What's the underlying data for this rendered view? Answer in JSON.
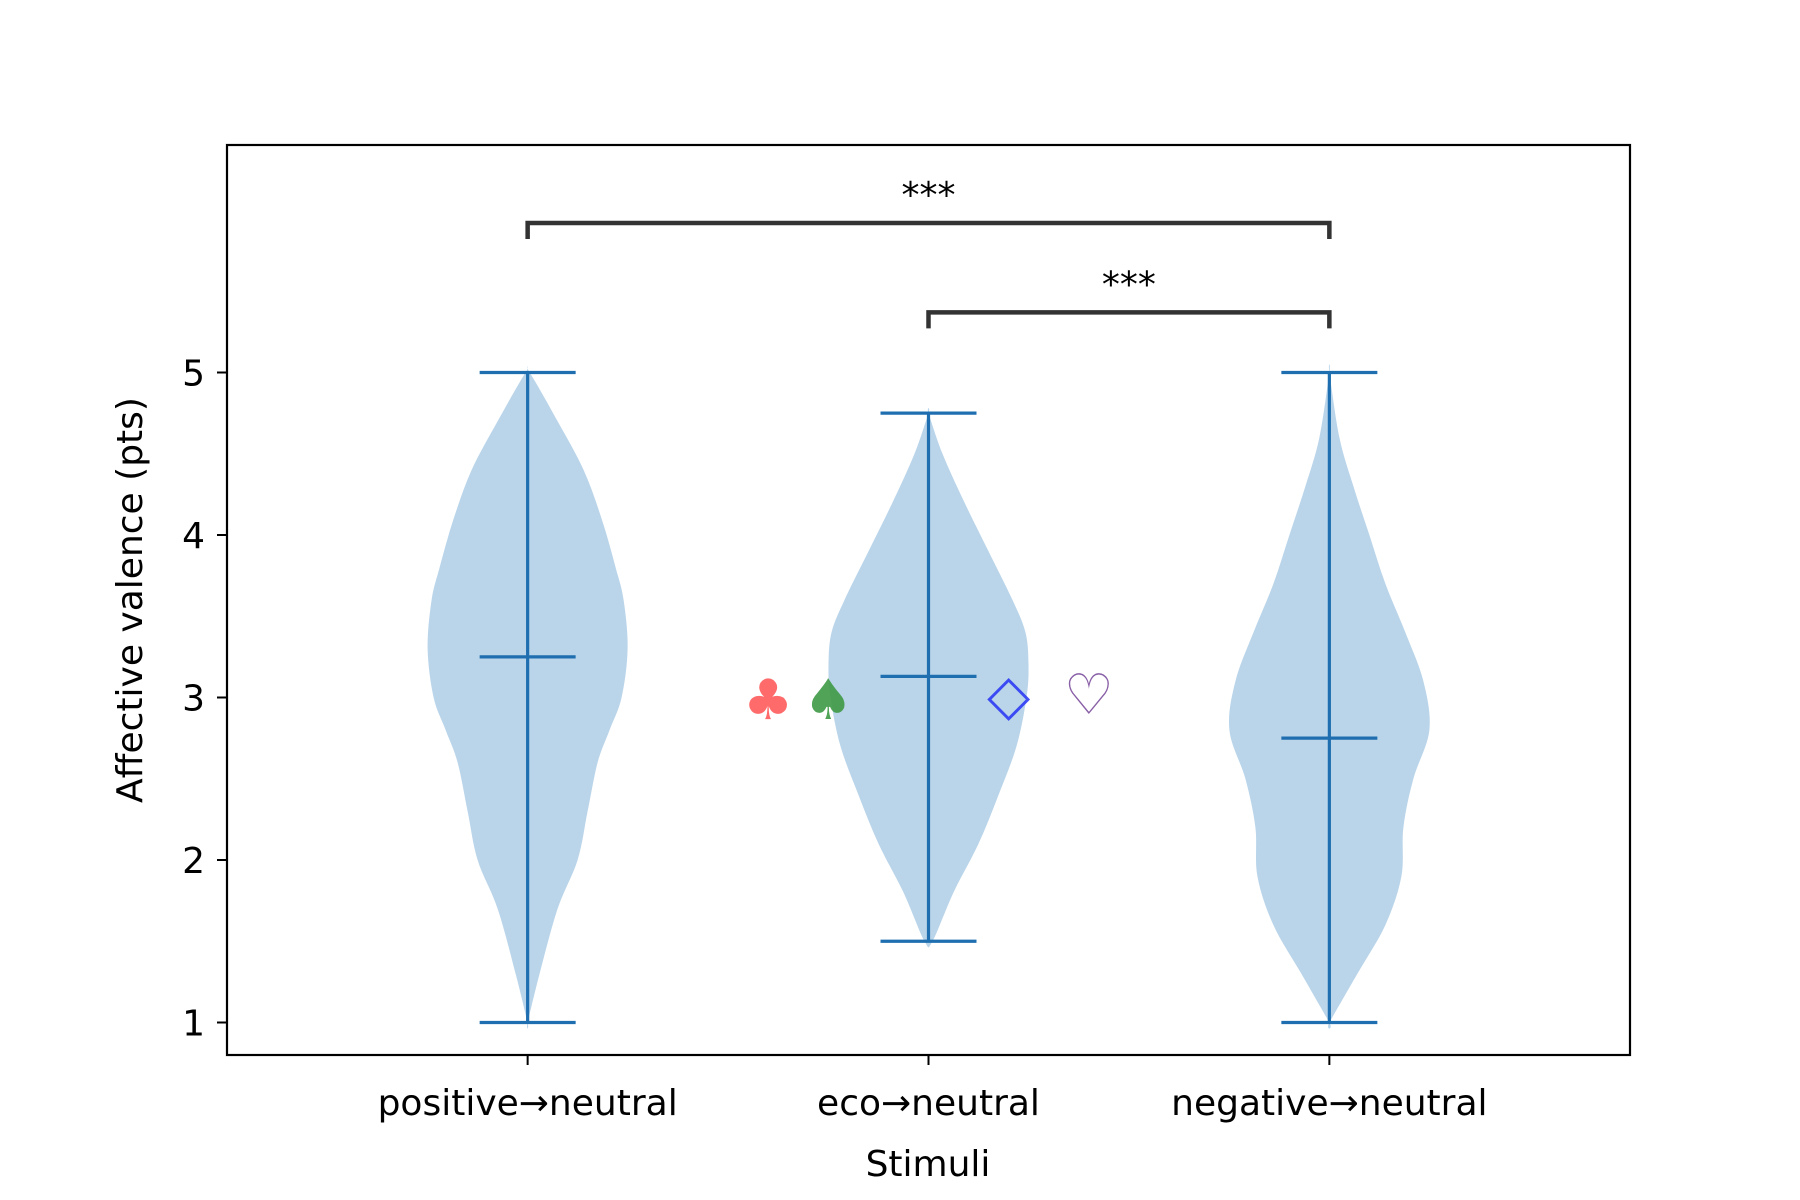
{
  "chart_data": {
    "type": "violin",
    "title": "",
    "xlabel": "Stimuli",
    "ylabel": "Affective valence (pts)",
    "categories": [
      "positive→neutral",
      "eco→neutral",
      "negative→neutral"
    ],
    "ylim": [
      0.8,
      6.4
    ],
    "yticks": [
      1,
      2,
      3,
      4,
      5
    ],
    "violins": [
      {
        "category": "positive→neutral",
        "min": 1.0,
        "max": 5.0,
        "mean": 3.25,
        "density": [
          [
            1.0,
            0.0
          ],
          [
            1.3,
            0.12
          ],
          [
            1.7,
            0.3
          ],
          [
            2.0,
            0.5
          ],
          [
            2.3,
            0.6
          ],
          [
            2.6,
            0.7
          ],
          [
            2.8,
            0.82
          ],
          [
            3.0,
            0.94
          ],
          [
            3.3,
            1.0
          ],
          [
            3.6,
            0.96
          ],
          [
            3.8,
            0.88
          ],
          [
            4.1,
            0.74
          ],
          [
            4.4,
            0.56
          ],
          [
            4.7,
            0.3
          ],
          [
            5.0,
            0.02
          ]
        ]
      },
      {
        "category": "eco→neutral",
        "min": 1.5,
        "max": 4.75,
        "mean": 3.13,
        "density": [
          [
            1.5,
            0.04
          ],
          [
            1.8,
            0.25
          ],
          [
            2.1,
            0.5
          ],
          [
            2.4,
            0.7
          ],
          [
            2.7,
            0.88
          ],
          [
            3.0,
            0.98
          ],
          [
            3.2,
            1.0
          ],
          [
            3.4,
            0.97
          ],
          [
            3.6,
            0.84
          ],
          [
            3.9,
            0.6
          ],
          [
            4.2,
            0.36
          ],
          [
            4.5,
            0.14
          ],
          [
            4.75,
            0.0
          ]
        ]
      },
      {
        "category": "negative→neutral",
        "min": 1.0,
        "max": 5.0,
        "mean": 2.75,
        "density": [
          [
            1.0,
            0.0
          ],
          [
            1.3,
            0.28
          ],
          [
            1.6,
            0.56
          ],
          [
            1.9,
            0.72
          ],
          [
            2.2,
            0.74
          ],
          [
            2.5,
            0.84
          ],
          [
            2.8,
            1.0
          ],
          [
            3.1,
            0.94
          ],
          [
            3.4,
            0.76
          ],
          [
            3.7,
            0.56
          ],
          [
            4.0,
            0.4
          ],
          [
            4.3,
            0.24
          ],
          [
            4.6,
            0.1
          ],
          [
            5.0,
            0.0
          ]
        ]
      }
    ],
    "significance": [
      {
        "from": "positive→neutral",
        "to": "negative→neutral",
        "label": "***",
        "y": 5.92
      },
      {
        "from": "eco→neutral",
        "to": "negative→neutral",
        "label": "***",
        "y": 5.37
      }
    ],
    "markers": [
      {
        "symbol": "♣",
        "x": -0.4,
        "y": 2.98,
        "color": "#ff5c5c"
      },
      {
        "symbol": "♠",
        "x": -0.25,
        "y": 2.98,
        "color": "#3f9a45"
      },
      {
        "symbol": "◇",
        "x": 0.2,
        "y": 3.01,
        "color": "#2e3cf5"
      },
      {
        "symbol": "♡",
        "x": 0.4,
        "y": 3.01,
        "color": "#7d4f9e"
      }
    ],
    "colors": {
      "violin_fill": "#bad5ea",
      "violin_line": "#1f6fb0",
      "bracket": "#333333"
    }
  }
}
